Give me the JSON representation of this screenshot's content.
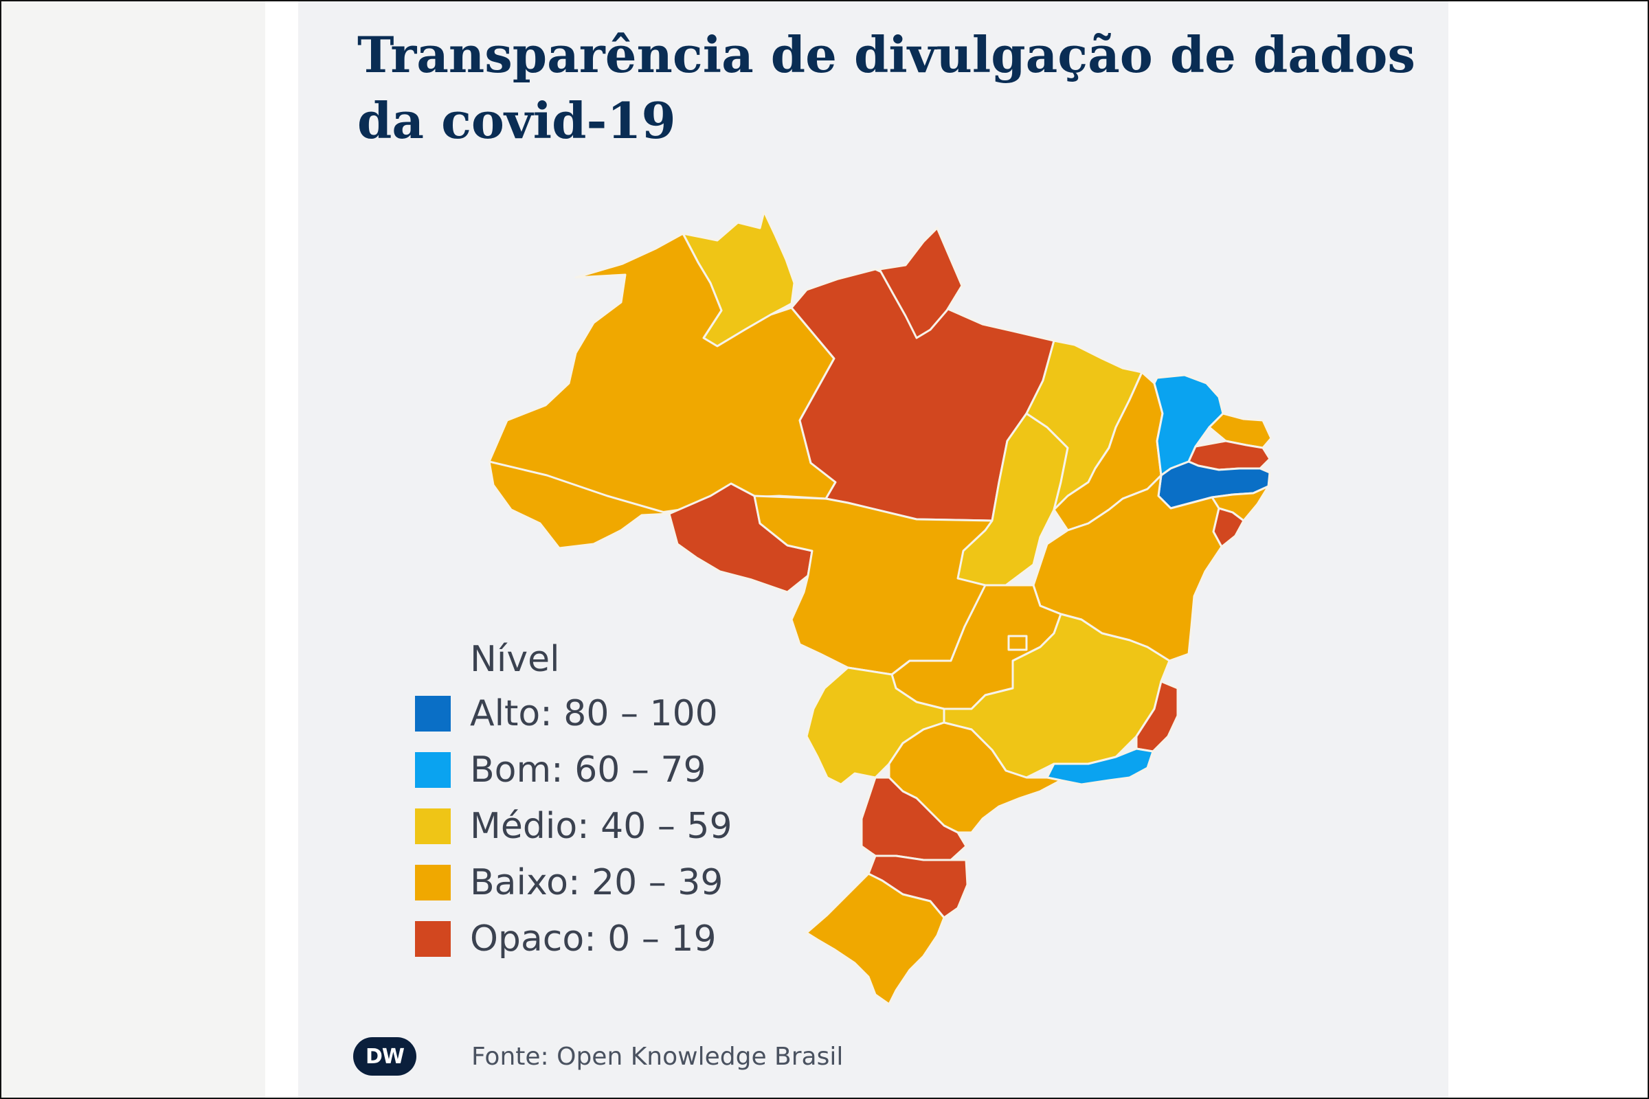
{
  "title": "Transparência de divulgação de dados da covid-19",
  "legend": {
    "title": "Nível",
    "items": [
      {
        "label": "Alto: 80 – 100",
        "color": "#0a6fc6"
      },
      {
        "label": "Bom: 60 – 79",
        "color": "#0aa3f0"
      },
      {
        "label": "Médio: 40 – 59",
        "color": "#efc516"
      },
      {
        "label": "Baixo: 20 – 39",
        "color": "#f0a800"
      },
      {
        "label": "Opaco: 0 – 19",
        "color": "#d2471f"
      }
    ]
  },
  "regions": [
    {
      "name": "Roraima",
      "level": "Médio"
    },
    {
      "name": "Amazonas",
      "level": "Baixo"
    },
    {
      "name": "Pará",
      "level": "Opaco"
    },
    {
      "name": "Amapá",
      "level": "Opaco"
    },
    {
      "name": "Acre",
      "level": "Baixo"
    },
    {
      "name": "Rondônia",
      "level": "Opaco"
    },
    {
      "name": "Mato Grosso",
      "level": "Baixo"
    },
    {
      "name": "Tocantins",
      "level": "Médio"
    },
    {
      "name": "Maranhão",
      "level": "Médio"
    },
    {
      "name": "Piauí",
      "level": "Baixo"
    },
    {
      "name": "Ceará",
      "level": "Bom"
    },
    {
      "name": "Rio Grande do Norte",
      "level": "Baixo"
    },
    {
      "name": "Paraíba",
      "level": "Opaco"
    },
    {
      "name": "Pernambuco",
      "level": "Alto"
    },
    {
      "name": "Alagoas",
      "level": "Baixo"
    },
    {
      "name": "Sergipe",
      "level": "Opaco"
    },
    {
      "name": "Bahia",
      "level": "Baixo"
    },
    {
      "name": "Goiás",
      "level": "Baixo"
    },
    {
      "name": "Distrito Federal",
      "level": "Baixo"
    },
    {
      "name": "Minas Gerais",
      "level": "Médio"
    },
    {
      "name": "Espírito Santo",
      "level": "Opaco"
    },
    {
      "name": "Rio de Janeiro",
      "level": "Bom"
    },
    {
      "name": "Mato Grosso do Sul",
      "level": "Médio"
    },
    {
      "name": "São Paulo",
      "level": "Baixo"
    },
    {
      "name": "Paraná",
      "level": "Opaco"
    },
    {
      "name": "Santa Catarina",
      "level": "Opaco"
    },
    {
      "name": "Rio Grande do Sul",
      "level": "Baixo"
    }
  ],
  "footer": {
    "logo_text": "DW",
    "source": "Fonte: Open Knowledge Brasil"
  }
}
